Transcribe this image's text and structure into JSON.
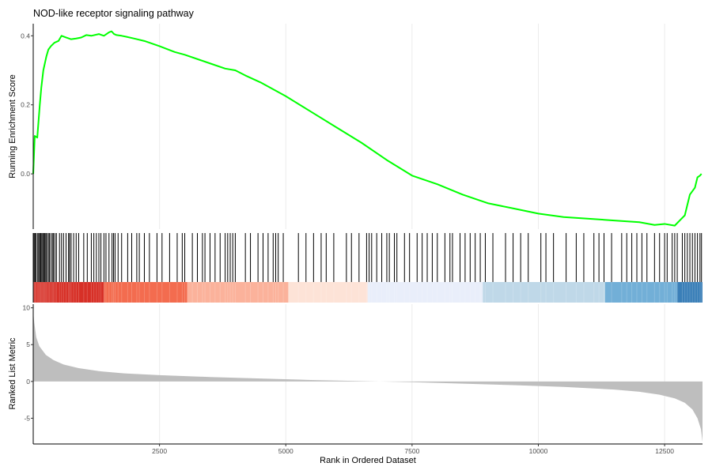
{
  "chart_data": {
    "type": "line",
    "title": "NOD-like receptor signaling pathway",
    "xlabel": "Rank in Ordered Dataset",
    "xlim": [
      0,
      13250
    ],
    "x_ticks": [
      "2500",
      "5000",
      "7500",
      "10000",
      "12500"
    ],
    "x_tick_values": [
      2500,
      5000,
      7500,
      10000,
      12500
    ],
    "grid": true,
    "panels": {
      "enrichment": {
        "ylabel": "Running Enrichment Score",
        "ylim": [
          -0.16,
          0.435
        ],
        "y_ticks": [
          "0.4",
          "0.2",
          "0.0"
        ],
        "y_tick_values": [
          0.4,
          0.2,
          0.0
        ],
        "line_color": "#00ff00",
        "x": [
          0,
          30,
          80,
          130,
          160,
          200,
          260,
          300,
          350,
          420,
          500,
          560,
          650,
          750,
          850,
          950,
          1050,
          1150,
          1300,
          1400,
          1500,
          1550,
          1600,
          1650,
          1750,
          1850,
          2000,
          2200,
          2500,
          2800,
          3000,
          3300,
          3500,
          3800,
          4000,
          4200,
          4500,
          5000,
          5500,
          6000,
          6500,
          7000,
          7500,
          8000,
          8500,
          9000,
          9500,
          10000,
          10500,
          11000,
          11500,
          12000,
          12300,
          12500,
          12700,
          12800,
          12900,
          12950,
          13000,
          13050,
          13100,
          13150,
          13200,
          13230
        ],
        "y": [
          0.0,
          0.11,
          0.105,
          0.2,
          0.25,
          0.3,
          0.34,
          0.36,
          0.37,
          0.38,
          0.385,
          0.4,
          0.395,
          0.39,
          0.392,
          0.395,
          0.402,
          0.4,
          0.405,
          0.4,
          0.41,
          0.413,
          0.405,
          0.402,
          0.4,
          0.397,
          0.392,
          0.385,
          0.37,
          0.353,
          0.345,
          0.33,
          0.32,
          0.305,
          0.3,
          0.285,
          0.265,
          0.225,
          0.18,
          0.135,
          0.09,
          0.04,
          -0.005,
          -0.03,
          -0.06,
          -0.085,
          -0.1,
          -0.115,
          -0.125,
          -0.13,
          -0.135,
          -0.14,
          -0.148,
          -0.145,
          -0.15,
          -0.135,
          -0.12,
          -0.09,
          -0.06,
          -0.05,
          -0.04,
          -0.01,
          -0.005,
          0.0
        ]
      },
      "hits": {
        "gene_ranks": [
          5,
          20,
          40,
          60,
          90,
          110,
          130,
          150,
          170,
          190,
          210,
          230,
          250,
          270,
          300,
          320,
          350,
          380,
          400,
          430,
          460,
          520,
          560,
          600,
          650,
          700,
          720,
          750,
          800,
          850,
          900,
          1000,
          1070,
          1150,
          1200,
          1250,
          1300,
          1340,
          1400,
          1440,
          1500,
          1560,
          1590,
          1620,
          1680,
          1750,
          1870,
          1950,
          2050,
          2100,
          2200,
          2300,
          2450,
          2550,
          2700,
          2850,
          2950,
          3000,
          3150,
          3250,
          3350,
          3400,
          3500,
          3600,
          3700,
          3800,
          3850,
          3900,
          3950,
          4000,
          4200,
          4300,
          4450,
          4550,
          4650,
          4750,
          4800,
          4850,
          4950,
          5250,
          5400,
          5550,
          5700,
          5800,
          5950,
          6200,
          6300,
          6450,
          6600,
          6650,
          6700,
          6800,
          6900,
          7000,
          7050,
          7150,
          7200,
          7350,
          7450,
          7600,
          7700,
          7800,
          7900,
          8000,
          8150,
          8250,
          8300,
          8450,
          8550,
          8650,
          8750,
          8850,
          8950,
          9100,
          9350,
          9500,
          9650,
          9800,
          10050,
          10150,
          10300,
          10550,
          10750,
          10900,
          11100,
          11200,
          11300,
          11450,
          11650,
          11750,
          11850,
          11950,
          12050,
          12150,
          12300,
          12400,
          12500,
          12550,
          12650,
          12700,
          12750,
          12850,
          12900,
          12950,
          13000,
          13050,
          13100,
          13150,
          13200,
          13230
        ]
      },
      "color_bands": [
        {
          "from": 0,
          "to": 1400,
          "color": "#d73027"
        },
        {
          "from": 1400,
          "to": 3050,
          "color": "#f36c4f"
        },
        {
          "from": 3050,
          "to": 5050,
          "color": "#fbb29b"
        },
        {
          "from": 5050,
          "to": 6620,
          "color": "#fde3d7"
        },
        {
          "from": 6620,
          "to": 8900,
          "color": "#e9eefa"
        },
        {
          "from": 8900,
          "to": 11320,
          "color": "#bfd8e8"
        },
        {
          "from": 11320,
          "to": 12750,
          "color": "#72afd7"
        },
        {
          "from": 12750,
          "to": 13250,
          "color": "#3a7fb8"
        }
      ],
      "ranked_metric": {
        "ylabel": "Ranked List Metric",
        "ylim": [
          -8.5,
          10.5
        ],
        "y_ticks": [
          "10",
          "5",
          "0",
          "-5"
        ],
        "y_tick_values": [
          10,
          5,
          0,
          -5
        ],
        "fill_color": "#bebebe",
        "x": [
          0,
          20,
          60,
          120,
          250,
          400,
          600,
          900,
          1300,
          1800,
          2500,
          3500,
          4500,
          5500,
          6500,
          7500,
          8500,
          9500,
          10500,
          11500,
          12000,
          12400,
          12700,
          12900,
          13050,
          13150,
          13220,
          13250
        ],
        "y": [
          9.5,
          8.0,
          6.0,
          4.8,
          3.6,
          2.9,
          2.3,
          1.8,
          1.4,
          1.1,
          0.85,
          0.6,
          0.4,
          0.2,
          0.05,
          -0.1,
          -0.3,
          -0.5,
          -0.75,
          -1.1,
          -1.4,
          -1.8,
          -2.3,
          -2.9,
          -3.8,
          -5.0,
          -6.5,
          -8.2
        ]
      }
    }
  }
}
